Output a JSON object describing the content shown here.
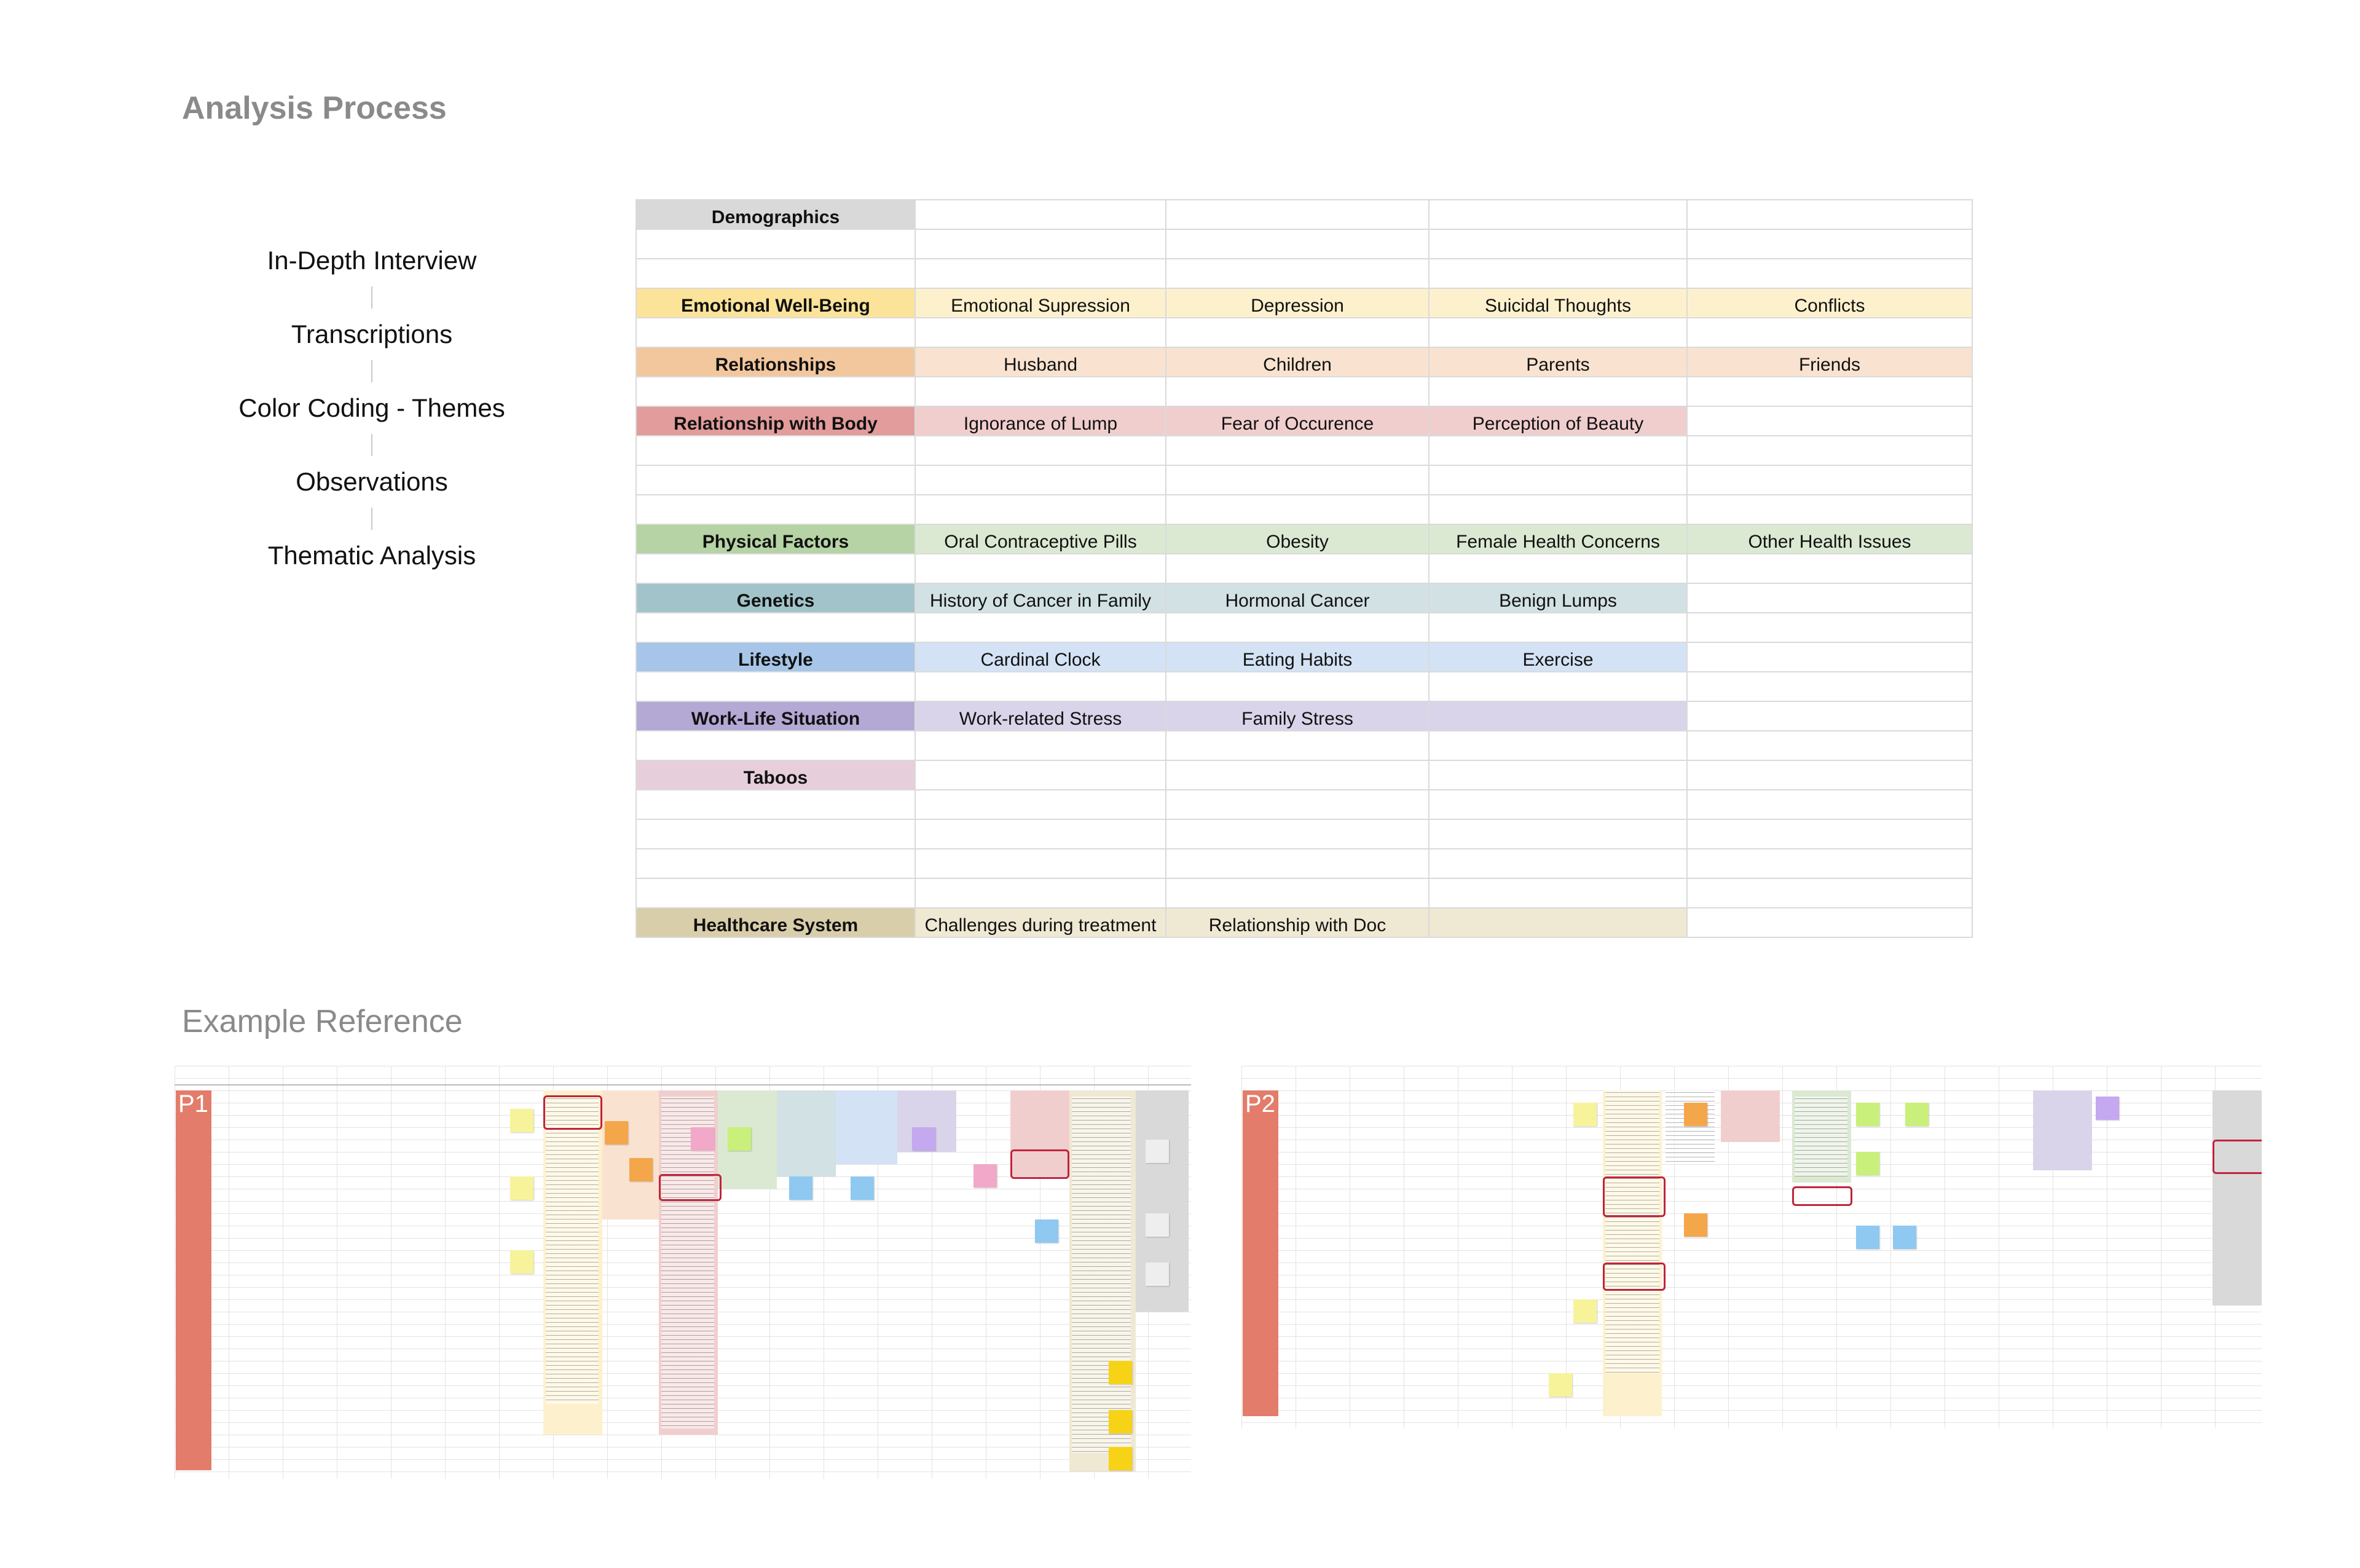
{
  "page": {
    "title": "Analysis Process",
    "example_heading": "Example Reference"
  },
  "flow": [
    "In-Depth Interview",
    "Transcriptions",
    "Color Coding - Themes",
    "Observations",
    "Thematic Analysis"
  ],
  "themes": [
    {
      "name": "Demographics",
      "hdr_color": "#d9d9d9",
      "cell_color": "#ffffff",
      "codes": [
        "",
        "",
        "",
        ""
      ],
      "filled": 0,
      "blank_after": 2
    },
    {
      "name": "Emotional Well-Being",
      "hdr_color": "#fbe39a",
      "cell_color": "#fdf1cd",
      "codes": [
        "Emotional Supression",
        "Depression",
        "Suicidal Thoughts",
        "Conflicts"
      ],
      "filled": 4,
      "blank_after": 1
    },
    {
      "name": "Relationships",
      "hdr_color": "#f3c79e",
      "cell_color": "#f9e3d0",
      "codes": [
        "Husband",
        "Children",
        "Parents",
        "Friends"
      ],
      "filled": 4,
      "blank_after": 1
    },
    {
      "name": "Relationship with Body",
      "hdr_color": "#e29c9b",
      "cell_color": "#f1cece",
      "codes": [
        "Ignorance of Lump",
        "Fear of Occurence",
        "Perception of Beauty",
        ""
      ],
      "filled": 3,
      "blank_after": 3
    },
    {
      "name": "Physical Factors",
      "hdr_color": "#b5d3a4",
      "cell_color": "#dbe9d2",
      "codes": [
        "Oral Contraceptive Pills",
        "Obesity",
        "Female Health Concerns",
        "Other Health Issues"
      ],
      "filled": 4,
      "blank_after": 1
    },
    {
      "name": "Genetics",
      "hdr_color": "#a2c3c9",
      "cell_color": "#d1e1e4",
      "codes": [
        "History of Cancer in Family",
        "Hormonal Cancer",
        "Benign Lumps",
        ""
      ],
      "filled": 3,
      "blank_after": 1
    },
    {
      "name": "Lifestyle",
      "hdr_color": "#a6c5e8",
      "cell_color": "#d3e2f4",
      "codes": [
        "Cardinal Clock",
        "Eating Habits",
        "Exercise",
        ""
      ],
      "filled": 3,
      "blank_after": 1
    },
    {
      "name": "Work-Life Situation",
      "hdr_color": "#b4a8d4",
      "cell_color": "#dad4ea",
      "codes": [
        "Work-related Stress",
        "Family Stress",
        "",
        ""
      ],
      "filled": 3,
      "blank_after": 1
    },
    {
      "name": "Taboos",
      "hdr_color": "#e6cfdb",
      "cell_color": "#ffffff",
      "codes": [
        "",
        "",
        "",
        ""
      ],
      "filled": 0,
      "blank_after": 4
    },
    {
      "name": "Healthcare System",
      "hdr_color": "#d9ceaa",
      "cell_color": "#efe8d3",
      "codes": [
        "Challenges during treatment",
        "Relationship with Doc",
        "",
        ""
      ],
      "filled": 3,
      "blank_after": 0
    }
  ],
  "references": [
    {
      "label": "P1"
    },
    {
      "label": "P2"
    }
  ]
}
